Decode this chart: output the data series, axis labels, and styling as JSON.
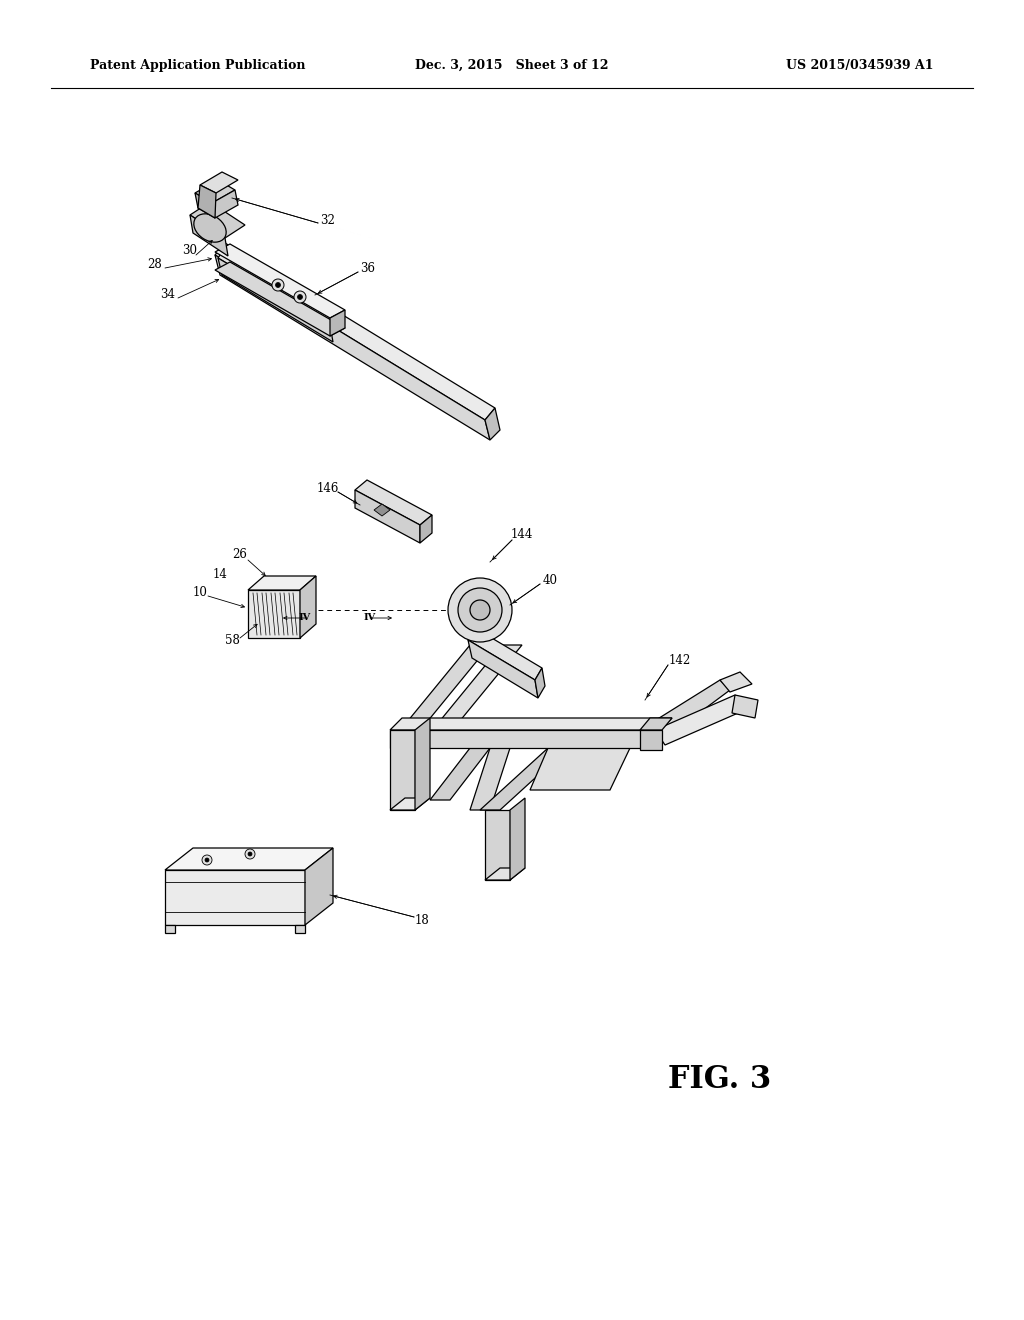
{
  "bg_color": "#ffffff",
  "header_left": "Patent Application Publication",
  "header_center": "Dec. 3, 2015   Sheet 3 of 12",
  "header_right": "US 2015/0345939 A1",
  "fig_label": "FIG. 3",
  "title_fontsize": 9,
  "label_fontsize": 8.5,
  "fig_label_fontsize": 22,
  "line_color": "#000000",
  "face_light": "#e8e8e8",
  "face_mid": "#d0d0d0",
  "face_dark": "#b8b8b8"
}
